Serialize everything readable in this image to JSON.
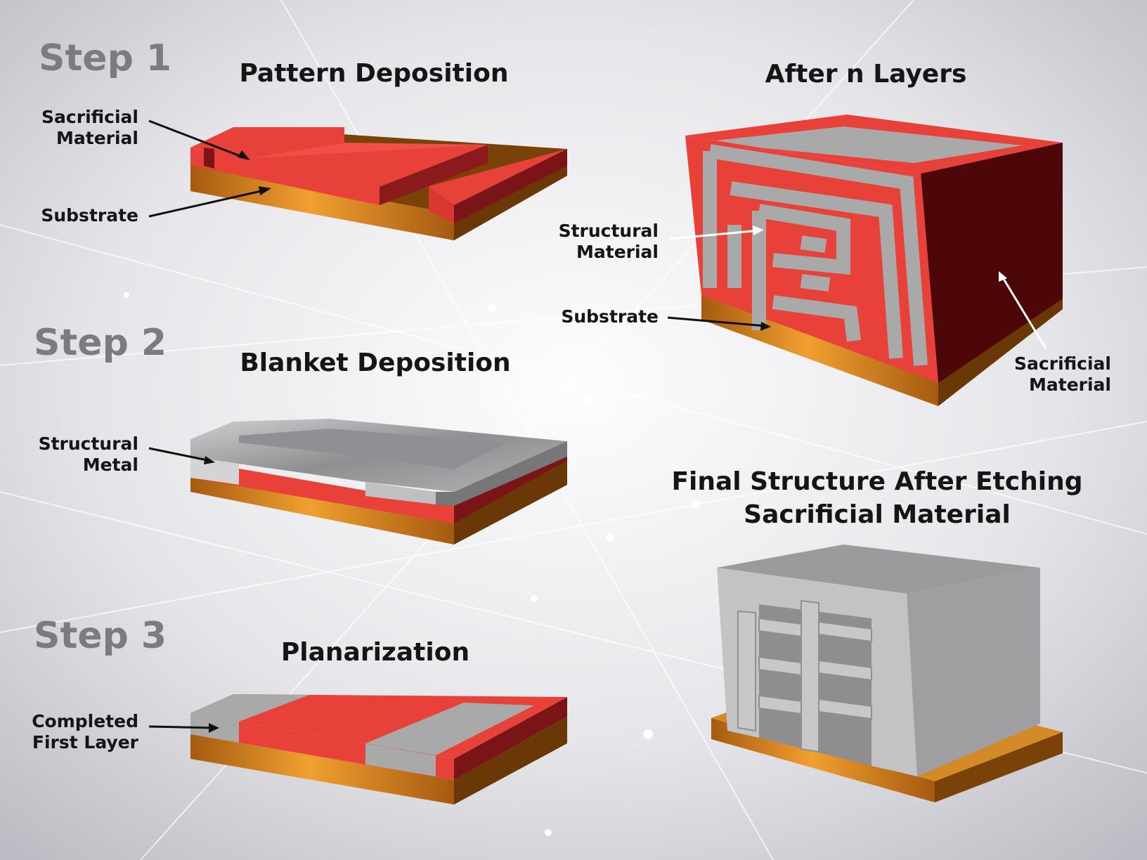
{
  "steps": {
    "step1": {
      "label": "Step 1",
      "title": "Pattern Deposition",
      "labels": {
        "sacrificial_line1": "Sacrificial",
        "sacrificial_line2": "Material",
        "substrate": "Substrate"
      }
    },
    "step2": {
      "label": "Step 2",
      "title": "Blanket Deposition",
      "labels": {
        "structural_line1": "Structural",
        "structural_line2": "Metal"
      }
    },
    "step3": {
      "label": "Step 3",
      "title": "Planarization",
      "labels": {
        "completed_line1": "Completed",
        "completed_line2": "First Layer"
      }
    }
  },
  "after_layers": {
    "title": "After n Layers",
    "labels": {
      "structural_line1": "Structural",
      "structural_line2": "Material",
      "substrate": "Substrate",
      "sacrificial_line1": "Sacrificial",
      "sacrificial_line2": "Material"
    }
  },
  "final_structure": {
    "title_line1": "Final Structure After Etching",
    "title_line2": "Sacrificial Material"
  },
  "colors": {
    "sacrificial": "#e8413a",
    "sacrificial_side": "#7a1416",
    "substrate": "#c8761c",
    "substrate_side": "#7a4208",
    "structural": "#a9a9aa",
    "structural_light": "#c8c8c9",
    "structural_dark": "#8c8c8e"
  }
}
